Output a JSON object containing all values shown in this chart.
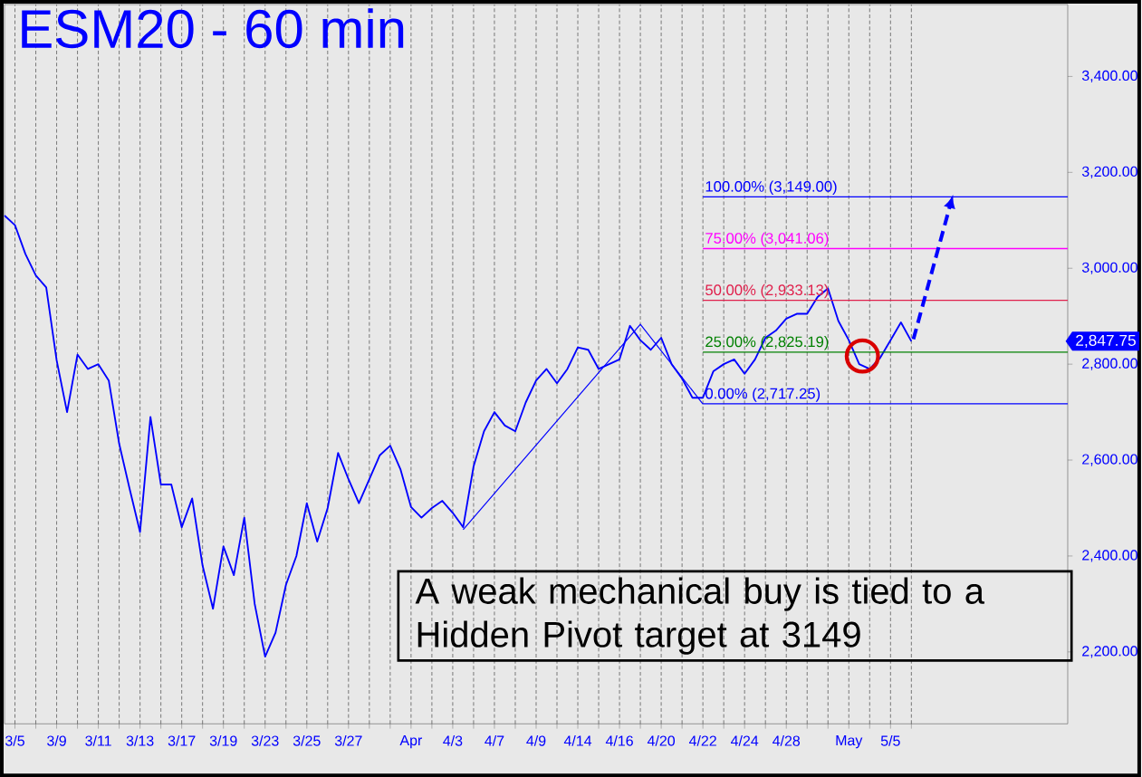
{
  "chart_data": {
    "type": "line",
    "title": "ESM20 - 60 min",
    "categories": [
      null,
      "3/5",
      null,
      null,
      null,
      "3/9",
      null,
      null,
      null,
      "3/11",
      null,
      null,
      null,
      "3/13",
      null,
      null,
      null,
      "3/17",
      null,
      null,
      null,
      "3/19",
      null,
      null,
      null,
      "3/23",
      null,
      null,
      null,
      "3/25",
      null,
      null,
      null,
      "3/27",
      null,
      null,
      null,
      null,
      null,
      "Apr",
      null,
      null,
      null,
      "4/3",
      null,
      null,
      null,
      "4/7",
      null,
      null,
      null,
      "4/9",
      null,
      null,
      null,
      "4/14",
      null,
      null,
      null,
      "4/16",
      null,
      null,
      null,
      "4/20",
      null,
      null,
      null,
      "4/22",
      null,
      null,
      null,
      "4/24",
      null,
      null,
      null,
      "4/28",
      null,
      null,
      null,
      null,
      null,
      "May",
      null,
      null,
      null,
      "5/5",
      null,
      null,
      null,
      null,
      null,
      null,
      null,
      null,
      null,
      null,
      null,
      null,
      null,
      null,
      null,
      null,
      null
    ],
    "series": [
      {
        "color": "#0000ff",
        "values": [
          3110,
          3090,
          3030,
          2985,
          2960,
          2808,
          2700,
          2820,
          2790,
          2800,
          2766,
          2634,
          2540,
          2450,
          2690,
          2549,
          2549,
          2460,
          2520,
          2380,
          2290,
          2420,
          2360,
          2480,
          2300,
          2190,
          2240,
          2340,
          2400,
          2510,
          2430,
          2500,
          2615,
          2560,
          2510,
          2560,
          2610,
          2630,
          2580,
          2502,
          2480,
          2500,
          2515,
          2490,
          2460,
          2587,
          2660,
          2700,
          2672,
          2660,
          2720,
          2766,
          2790,
          2760,
          2790,
          2835,
          2830,
          2790,
          2800,
          2810,
          2880,
          2850,
          2830,
          2855,
          2800,
          2770,
          2730,
          2730,
          2785,
          2800,
          2810,
          2780,
          2810,
          2855,
          2870,
          2895,
          2905,
          2905,
          2940,
          2958,
          2890,
          2850,
          2800,
          2790,
          2813,
          2850,
          2887,
          2847.75,
          null,
          null,
          null,
          null,
          null,
          null,
          null,
          null,
          null,
          null,
          null,
          null,
          null,
          null,
          null
        ]
      },
      {
        "type": "line",
        "color": "#0000ff",
        "values": [
          null,
          null,
          null,
          null,
          null,
          null,
          null,
          null,
          null,
          null,
          null,
          null,
          null,
          null,
          null,
          null,
          null,
          null,
          null,
          null,
          null,
          null,
          null,
          null,
          null,
          null,
          null,
          null,
          null,
          null,
          null,
          null,
          null,
          null,
          null,
          null,
          null,
          null,
          null,
          null,
          null,
          null,
          null,
          null,
          2455,
          null,
          null,
          null,
          null,
          null,
          null,
          null,
          null,
          null,
          null,
          null,
          null,
          null,
          null,
          null,
          null,
          2883,
          null,
          null,
          null,
          null,
          null,
          2717,
          null,
          null,
          null,
          null,
          null,
          null,
          null,
          null,
          null,
          null,
          null,
          null,
          null,
          null,
          null,
          null,
          null,
          null,
          null,
          null,
          null,
          null,
          null,
          null,
          null,
          null,
          null,
          null,
          null,
          null,
          null,
          null,
          null,
          null,
          null
        ]
      }
    ],
    "ylim": [
      2050,
      3550
    ],
    "yticks": [
      {
        "value": 2200,
        "label": "2,200.00"
      },
      {
        "value": 2400,
        "label": "2,400.00"
      },
      {
        "value": 2600,
        "label": "2,600.00"
      },
      {
        "value": 2800,
        "label": "2,800.00"
      },
      {
        "value": 3000,
        "label": "3,000.00"
      },
      {
        "value": 3200,
        "label": "3,200.00"
      },
      {
        "value": 3400,
        "label": "3,400.00"
      }
    ],
    "grid": "x",
    "ref_lines": [
      {
        "axis": "y",
        "value": 3149,
        "label": "100.00% (3,149.00)",
        "color": "#0000ff"
      },
      {
        "axis": "y",
        "value": 3041.06,
        "label": "75.00% (3,041.06)",
        "color": "#ff00ff"
      },
      {
        "axis": "y",
        "value": 2933.13,
        "label": "50.00% (2,933.13)",
        "color": "#e0204c"
      },
      {
        "axis": "y",
        "value": 2825.19,
        "label": "25.00% (2,825.19)",
        "color": "#008000"
      },
      {
        "axis": "y",
        "value": 2717.25,
        "label": "0.00% (2,717.25)",
        "color": "#0000ff"
      }
    ],
    "annotations": [
      "2,847.75",
      "A weak mechanical buy is tied to a Hidden Pivot target at 3149"
    ]
  }
}
